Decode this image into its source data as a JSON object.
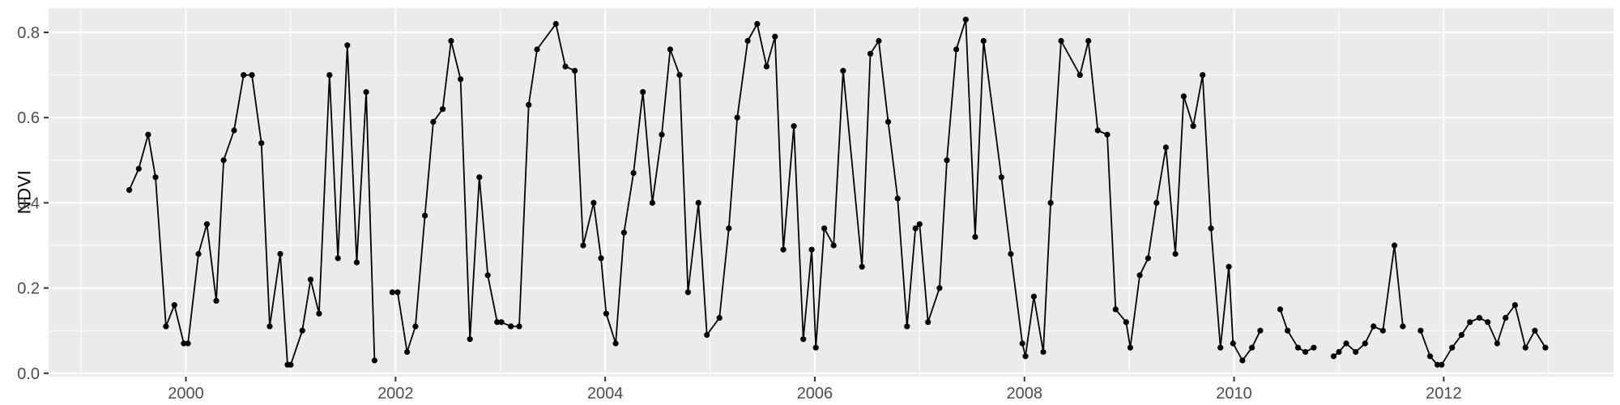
{
  "page": {
    "background": "#ffffff"
  },
  "chart_data": {
    "type": "line",
    "title": "",
    "xlabel": "",
    "ylabel": "NDVI",
    "legend_position": "none",
    "grid": "on",
    "panel_bg": "#EBEBEB",
    "grid_color": "#FFFFFF",
    "line_color": "#000000",
    "point_color": "#000000",
    "axis_text_color": "#4D4D4D",
    "axis_title_color": "#000000",
    "tick_color": "#333333",
    "xlim": [
      1998.69,
      2013.62
    ],
    "ylim": [
      -0.008,
      0.857
    ],
    "x_ticks": [
      {
        "label": "2000",
        "t": 2000
      },
      {
        "label": "2002",
        "t": 2002
      },
      {
        "label": "2004",
        "t": 2004
      },
      {
        "label": "2006",
        "t": 2006
      },
      {
        "label": "2008",
        "t": 2008
      },
      {
        "label": "2010",
        "t": 2010
      },
      {
        "label": "2012",
        "t": 2012
      }
    ],
    "x_minor_ticks": [
      1999,
      2001,
      2003,
      2005,
      2007,
      2009,
      2011,
      2013
    ],
    "y_ticks": [
      {
        "label": "0.0",
        "v": 0.0
      },
      {
        "label": "0.2",
        "v": 0.2
      },
      {
        "label": "0.4",
        "v": 0.4
      },
      {
        "label": "0.6",
        "v": 0.6
      },
      {
        "label": "0.8",
        "v": 0.8
      }
    ],
    "y_minor_ticks": [
      0.1,
      0.3,
      0.5,
      0.7
    ],
    "series": [
      {
        "name": "NDVI",
        "segments": [
          [
            [
              1999.46,
              0.43
            ],
            [
              1999.55,
              0.48
            ],
            [
              1999.64,
              0.56
            ],
            [
              1999.71,
              0.46
            ],
            [
              1999.81,
              0.11
            ],
            [
              1999.89,
              0.16
            ],
            [
              1999.98,
              0.07
            ],
            [
              2000.02,
              0.07
            ],
            [
              2000.12,
              0.28
            ],
            [
              2000.2,
              0.35
            ],
            [
              2000.29,
              0.17
            ],
            [
              2000.36,
              0.5
            ],
            [
              2000.46,
              0.57
            ],
            [
              2000.55,
              0.7
            ],
            [
              2000.63,
              0.7
            ],
            [
              2000.72,
              0.54
            ],
            [
              2000.8,
              0.11
            ],
            [
              2000.9,
              0.28
            ],
            [
              2000.97,
              0.02
            ],
            [
              2001.0,
              0.02
            ],
            [
              2001.11,
              0.1
            ],
            [
              2001.19,
              0.22
            ],
            [
              2001.27,
              0.14
            ],
            [
              2001.37,
              0.7
            ],
            [
              2001.45,
              0.27
            ],
            [
              2001.54,
              0.77
            ],
            [
              2001.63,
              0.26
            ],
            [
              2001.72,
              0.66
            ],
            [
              2001.8,
              0.03
            ]
          ],
          [
            [
              2001.97,
              0.19
            ],
            [
              2002.02,
              0.19
            ],
            [
              2002.11,
              0.05
            ],
            [
              2002.19,
              0.11
            ],
            [
              2002.28,
              0.37
            ],
            [
              2002.36,
              0.59
            ],
            [
              2002.45,
              0.62
            ],
            [
              2002.53,
              0.78
            ],
            [
              2002.62,
              0.69
            ],
            [
              2002.71,
              0.08
            ],
            [
              2002.8,
              0.46
            ],
            [
              2002.88,
              0.23
            ],
            [
              2002.97,
              0.12
            ],
            [
              2003.01,
              0.12
            ],
            [
              2003.1,
              0.11
            ],
            [
              2003.18,
              0.11
            ],
            [
              2003.27,
              0.63
            ],
            [
              2003.35,
              0.76
            ],
            [
              2003.53,
              0.82
            ],
            [
              2003.62,
              0.72
            ],
            [
              2003.71,
              0.71
            ],
            [
              2003.79,
              0.3
            ],
            [
              2003.89,
              0.4
            ],
            [
              2003.96,
              0.27
            ],
            [
              2004.01,
              0.14
            ],
            [
              2004.1,
              0.07
            ],
            [
              2004.18,
              0.33
            ],
            [
              2004.27,
              0.47
            ],
            [
              2004.36,
              0.66
            ],
            [
              2004.45,
              0.4
            ],
            [
              2004.54,
              0.56
            ],
            [
              2004.62,
              0.76
            ],
            [
              2004.71,
              0.7
            ],
            [
              2004.79,
              0.19
            ],
            [
              2004.89,
              0.4
            ],
            [
              2004.97,
              0.09
            ],
            [
              2005.09,
              0.13
            ],
            [
              2005.18,
              0.34
            ],
            [
              2005.26,
              0.6
            ],
            [
              2005.36,
              0.78
            ],
            [
              2005.45,
              0.82
            ],
            [
              2005.54,
              0.72
            ],
            [
              2005.62,
              0.79
            ],
            [
              2005.7,
              0.29
            ],
            [
              2005.8,
              0.58
            ],
            [
              2005.89,
              0.08
            ],
            [
              2005.97,
              0.29
            ],
            [
              2006.01,
              0.06
            ],
            [
              2006.09,
              0.34
            ],
            [
              2006.18,
              0.3
            ],
            [
              2006.27,
              0.71
            ],
            [
              2006.45,
              0.25
            ],
            [
              2006.53,
              0.75
            ],
            [
              2006.61,
              0.78
            ],
            [
              2006.7,
              0.59
            ],
            [
              2006.79,
              0.41
            ],
            [
              2006.88,
              0.11
            ],
            [
              2006.96,
              0.34
            ],
            [
              2007.0,
              0.35
            ],
            [
              2007.08,
              0.12
            ],
            [
              2007.19,
              0.2
            ],
            [
              2007.26,
              0.5
            ],
            [
              2007.35,
              0.76
            ],
            [
              2007.44,
              0.83
            ],
            [
              2007.53,
              0.32
            ],
            [
              2007.61,
              0.78
            ],
            [
              2007.78,
              0.46
            ],
            [
              2007.87,
              0.28
            ],
            [
              2007.98,
              0.07
            ],
            [
              2008.01,
              0.04
            ],
            [
              2008.09,
              0.18
            ],
            [
              2008.18,
              0.05
            ],
            [
              2008.25,
              0.4
            ],
            [
              2008.35,
              0.78
            ],
            [
              2008.53,
              0.7
            ],
            [
              2008.61,
              0.78
            ],
            [
              2008.7,
              0.57
            ],
            [
              2008.79,
              0.56
            ],
            [
              2008.87,
              0.15
            ],
            [
              2008.97,
              0.12
            ],
            [
              2009.01,
              0.06
            ],
            [
              2009.1,
              0.23
            ],
            [
              2009.18,
              0.27
            ],
            [
              2009.26,
              0.4
            ],
            [
              2009.35,
              0.53
            ],
            [
              2009.44,
              0.28
            ],
            [
              2009.52,
              0.65
            ],
            [
              2009.61,
              0.58
            ],
            [
              2009.7,
              0.7
            ],
            [
              2009.78,
              0.34
            ],
            [
              2009.87,
              0.06
            ],
            [
              2009.95,
              0.25
            ],
            [
              2009.99,
              0.07
            ],
            [
              2010.08,
              0.03
            ],
            [
              2010.17,
              0.06
            ],
            [
              2010.25,
              0.1
            ]
          ],
          [
            [
              2010.44,
              0.15
            ],
            [
              2010.51,
              0.1
            ],
            [
              2010.61,
              0.06
            ],
            [
              2010.68,
              0.05
            ],
            [
              2010.76,
              0.06
            ]
          ],
          [
            [
              2010.95,
              0.04
            ],
            [
              2011.0,
              0.05
            ],
            [
              2011.07,
              0.07
            ],
            [
              2011.16,
              0.05
            ],
            [
              2011.25,
              0.07
            ],
            [
              2011.33,
              0.11
            ],
            [
              2011.42,
              0.1
            ],
            [
              2011.53,
              0.3
            ],
            [
              2011.61,
              0.11
            ]
          ],
          [
            [
              2011.78,
              0.1
            ],
            [
              2011.87,
              0.04
            ],
            [
              2011.94,
              0.02
            ],
            [
              2011.98,
              0.02
            ],
            [
              2012.08,
              0.06
            ],
            [
              2012.17,
              0.09
            ],
            [
              2012.25,
              0.12
            ],
            [
              2012.34,
              0.13
            ],
            [
              2012.42,
              0.12
            ],
            [
              2012.51,
              0.07
            ],
            [
              2012.59,
              0.13
            ],
            [
              2012.68,
              0.16
            ],
            [
              2012.78,
              0.06
            ],
            [
              2012.87,
              0.1
            ],
            [
              2012.97,
              0.06
            ]
          ]
        ]
      }
    ]
  }
}
